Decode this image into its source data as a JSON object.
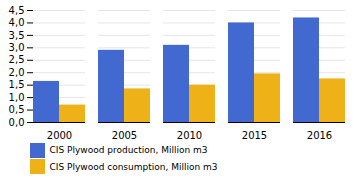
{
  "chart_data": {
    "type": "bar",
    "categories": [
      "2000",
      "2005",
      "2010",
      "2015",
      "2016"
    ],
    "series": [
      {
        "name": "CIS Plywood production, Million m3",
        "values": [
          1.65,
          2.9,
          3.1,
          4.0,
          4.2
        ]
      },
      {
        "name": "CIS Plywood consumption, Million m3",
        "values": [
          0.7,
          1.35,
          1.5,
          1.95,
          1.75
        ]
      }
    ],
    "ylim": [
      0,
      4.5
    ],
    "yticks": [
      {
        "value": 0.0,
        "label": "0,0"
      },
      {
        "value": 0.5,
        "label": "0,5"
      },
      {
        "value": 1.0,
        "label": "1,0"
      },
      {
        "value": 1.5,
        "label": "1,5"
      },
      {
        "value": 2.0,
        "label": "2,0"
      },
      {
        "value": 2.5,
        "label": "2,5"
      },
      {
        "value": 3.0,
        "label": "3,0"
      },
      {
        "value": 3.5,
        "label": "3,5"
      },
      {
        "value": 4.0,
        "label": "4,0"
      },
      {
        "value": 4.5,
        "label": "4,5"
      }
    ],
    "grid": true,
    "legend": "bottom"
  }
}
